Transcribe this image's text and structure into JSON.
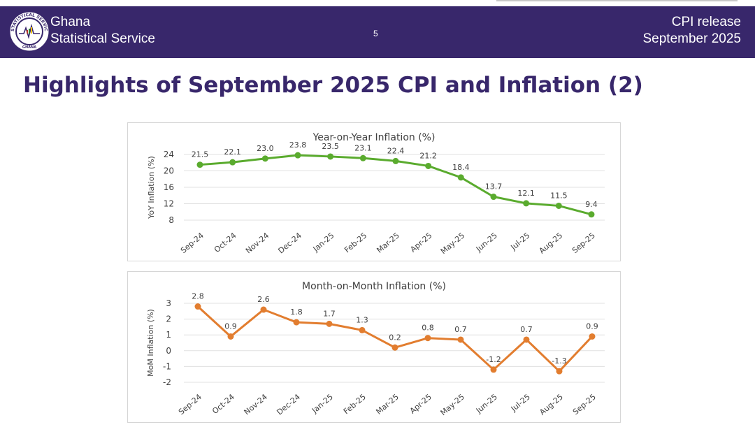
{
  "header": {
    "org_line1": "Ghana",
    "org_line2": "Statistical Service",
    "logo_text": "STATISTICAL SERVICE",
    "logo_sub": "GHANA",
    "page_number": "5",
    "release_line1": "CPI release",
    "release_line2": "September  2025",
    "bar_color": "#38276b"
  },
  "slide": {
    "title": "Highlights of September 2025 CPI and Inflation (2)"
  },
  "chart_data": [
    {
      "type": "line",
      "title": "Year-on-Year Inflation (%)",
      "ylabel": "YoY Inflation (%)",
      "xlabel": "",
      "categories": [
        "Sep-24",
        "Oct-24",
        "Nov-24",
        "Dec-24",
        "Jan-25",
        "Feb-25",
        "Mar-25",
        "Apr-25",
        "May-25",
        "Jun-25",
        "Jul-25",
        "Aug-25",
        "Sep-25"
      ],
      "values": [
        21.5,
        22.1,
        23.0,
        23.8,
        23.5,
        23.1,
        22.4,
        21.2,
        18.4,
        13.7,
        12.1,
        11.5,
        9.4
      ],
      "value_labels": [
        "21.5",
        "22.1",
        "23.0",
        "23.8",
        "23.5",
        "23.1",
        "22.4",
        "21.2",
        "18.4",
        "13.7",
        "12.1",
        "11.5",
        "9.4"
      ],
      "ylim": [
        8,
        24
      ],
      "yticks": [
        8,
        12,
        16,
        20,
        24
      ],
      "grid": true,
      "color": "#5aab2e"
    },
    {
      "type": "line",
      "title": "Month-on-Month Inflation (%)",
      "ylabel": "MoM Inflation (%)",
      "xlabel": "",
      "categories": [
        "Sep-24",
        "Oct-24",
        "Nov-24",
        "Dec-24",
        "Jan-25",
        "Feb-25",
        "Mar-25",
        "Apr-25",
        "May-25",
        "Jun-25",
        "Jul-25",
        "Aug-25",
        "Sep-25"
      ],
      "values": [
        2.8,
        0.9,
        2.6,
        1.8,
        1.7,
        1.3,
        0.2,
        0.8,
        0.7,
        -1.2,
        0.7,
        -1.3,
        0.9
      ],
      "value_labels": [
        "2.8",
        "0.9",
        "2.6",
        "1.8",
        "1.7",
        "1.3",
        "0.2",
        "0.8",
        "0.7",
        "-1.2",
        "0.7",
        "-1.3",
        "0.9"
      ],
      "ylim": [
        -2,
        3
      ],
      "yticks": [
        -2,
        -1,
        0,
        1,
        2,
        3
      ],
      "grid": true,
      "color": "#e27d2f"
    }
  ]
}
